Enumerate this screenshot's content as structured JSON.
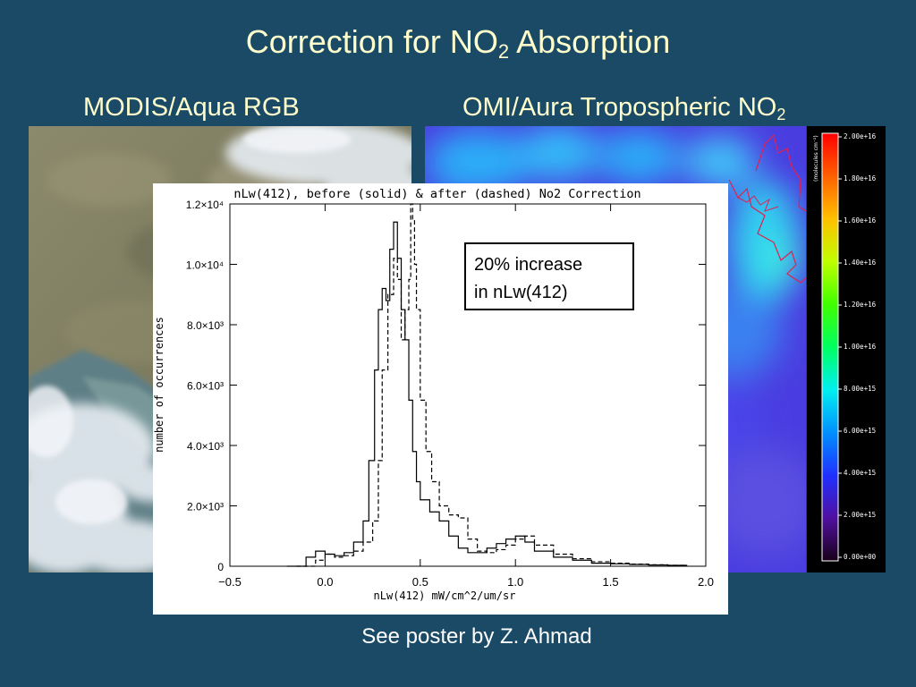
{
  "slide": {
    "title_main": "Correction for NO",
    "title_sub": "2",
    "title_rest": " Absorption",
    "left_caption": "MODIS/Aqua RGB",
    "right_caption_main": "OMI/Aura Tropospheric NO",
    "right_caption_sub": "2",
    "footer": "See poster by Z. Ahmad"
  },
  "colorbar": {
    "label": "(molecules cm⁻²)",
    "ticks": [
      "2.00e+16",
      "1.80e+16",
      "1.60e+16",
      "1.40e+16",
      "1.20e+16",
      "1.00e+16",
      "8.00e+15",
      "6.00e+15",
      "4.00e+15",
      "2.00e+15",
      "0.00e+00"
    ],
    "colors": [
      "#ff0000",
      "#ff8000",
      "#ffff00",
      "#80ff00",
      "#00ff00",
      "#00ff80",
      "#00ffff",
      "#0080ff",
      "#0000ff",
      "#6000a0",
      "#200020"
    ]
  },
  "chart_data": {
    "type": "line",
    "title": "nLw(412), before (solid) & after (dashed) No2 Correction",
    "xlabel": "nLw(412) mW/cm^2/um/sr",
    "ylabel": "number of occurrences",
    "xlim": [
      -0.5,
      2.0
    ],
    "ylim": [
      0,
      12000
    ],
    "xticks": [
      -0.5,
      0.0,
      0.5,
      1.0,
      1.5,
      2.0
    ],
    "xtick_labels": [
      "−0.5",
      "0.0",
      "0.5",
      "1.0",
      "1.5",
      "2.0"
    ],
    "yticks": [
      0,
      2000,
      4000,
      6000,
      8000,
      10000,
      12000
    ],
    "ytick_labels": [
      "0",
      "2.0×10³",
      "4.0×10³",
      "6.0×10³",
      "8.0×10³",
      "1.0×10⁴",
      "1.2×10⁴"
    ],
    "annotation": [
      "20% increase",
      "in nLw(412)"
    ],
    "series": [
      {
        "style": "solid",
        "x": [
          -0.2,
          -0.1,
          -0.05,
          0.0,
          0.05,
          0.1,
          0.15,
          0.2,
          0.23,
          0.26,
          0.28,
          0.3,
          0.32,
          0.34,
          0.36,
          0.38,
          0.4,
          0.42,
          0.44,
          0.46,
          0.48,
          0.5,
          0.55,
          0.6,
          0.65,
          0.7,
          0.75,
          0.8,
          0.85,
          0.9,
          0.95,
          1.0,
          1.05,
          1.1,
          1.2,
          1.3,
          1.4,
          1.5,
          1.6,
          1.7,
          1.8,
          1.9
        ],
        "y": [
          0,
          300,
          500,
          400,
          350,
          450,
          800,
          1500,
          3500,
          6500,
          8500,
          9200,
          8800,
          10500,
          11400,
          10200,
          8500,
          7500,
          5500,
          3800,
          2800,
          2200,
          1800,
          1500,
          1000,
          600,
          450,
          450,
          600,
          750,
          900,
          1000,
          800,
          500,
          300,
          200,
          100,
          80,
          60,
          40,
          30,
          20
        ]
      },
      {
        "style": "dashed",
        "x": [
          -0.15,
          -0.05,
          0.0,
          0.05,
          0.1,
          0.15,
          0.2,
          0.25,
          0.28,
          0.3,
          0.33,
          0.36,
          0.38,
          0.4,
          0.42,
          0.44,
          0.45,
          0.46,
          0.47,
          0.48,
          0.5,
          0.53,
          0.56,
          0.6,
          0.65,
          0.7,
          0.75,
          0.8,
          0.85,
          0.9,
          0.95,
          1.0,
          1.05,
          1.1,
          1.2,
          1.3,
          1.4,
          1.5,
          1.6,
          1.7,
          1.8,
          1.9
        ],
        "y": [
          0,
          200,
          400,
          300,
          350,
          500,
          800,
          1500,
          3500,
          6500,
          9000,
          10200,
          9500,
          7500,
          8500,
          9500,
          12000,
          11500,
          10000,
          8500,
          5500,
          3800,
          2800,
          2000,
          1700,
          1600,
          900,
          500,
          450,
          550,
          700,
          900,
          1000,
          700,
          400,
          250,
          150,
          100,
          70,
          50,
          30,
          20
        ]
      }
    ]
  }
}
